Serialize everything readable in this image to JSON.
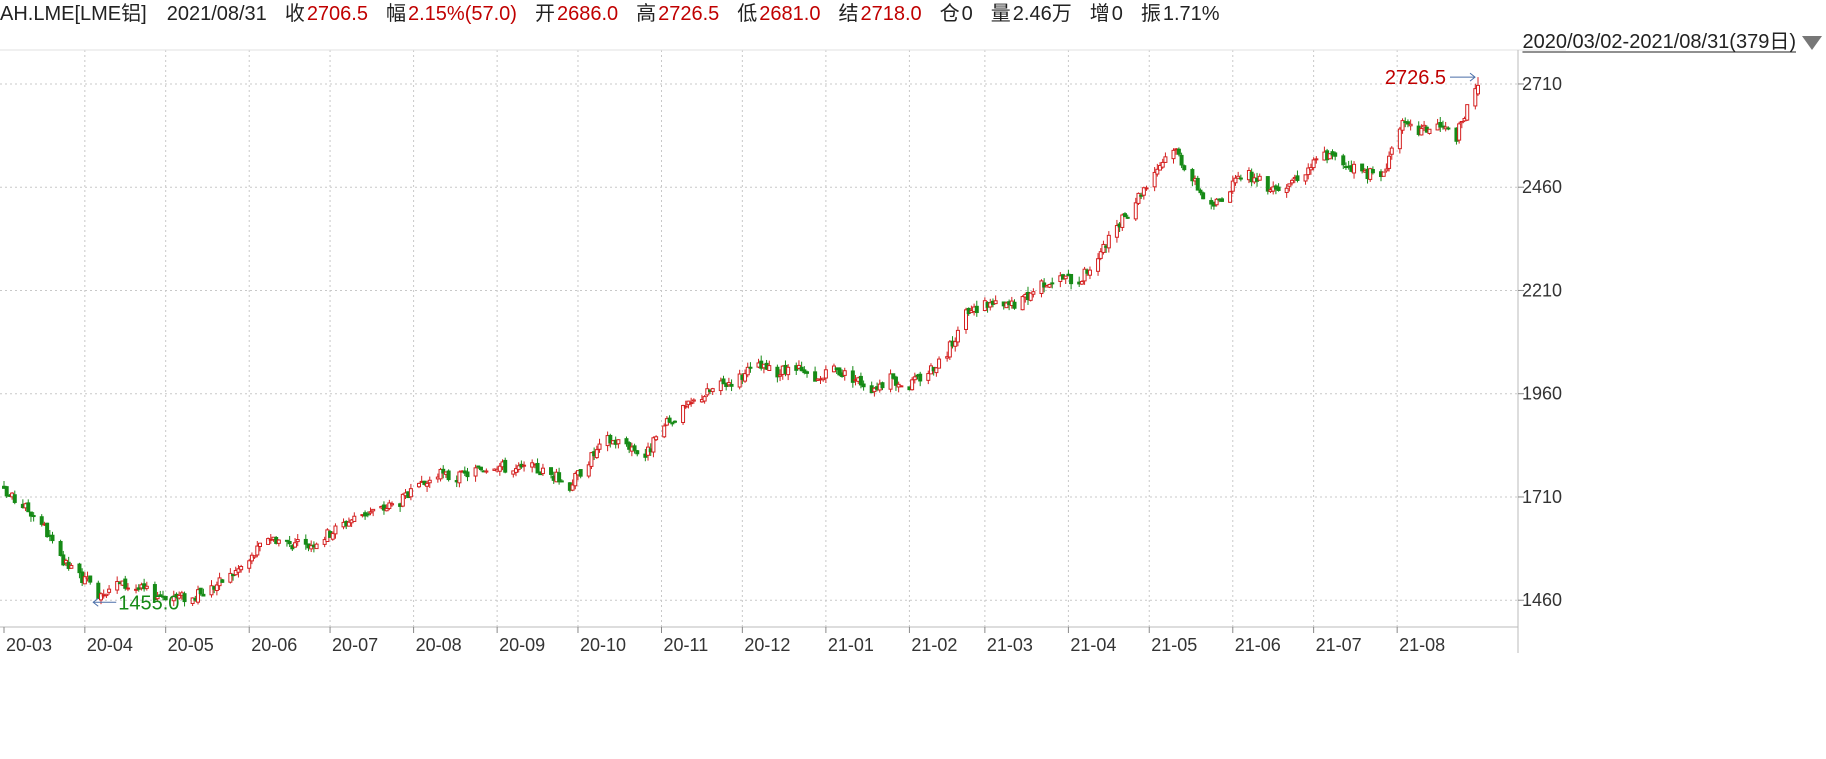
{
  "header": {
    "symbol": "AH.LME[LME铝]",
    "date": "2021/08/31",
    "fields": [
      {
        "label": "收",
        "value": "2706.5",
        "color": "#c00000"
      },
      {
        "label": "幅",
        "value": "2.15%(57.0)",
        "color": "#c00000"
      },
      {
        "label": "开",
        "value": "2686.0",
        "color": "#c00000"
      },
      {
        "label": "高",
        "value": "2726.5",
        "color": "#c00000"
      },
      {
        "label": "低",
        "value": "2681.0",
        "color": "#c00000"
      },
      {
        "label": "结",
        "value": "2718.0",
        "color": "#c00000"
      },
      {
        "label": "仓",
        "value": "0",
        "color": "#222222"
      },
      {
        "label": "量",
        "value": "2.46万",
        "color": "#222222"
      },
      {
        "label": "增",
        "value": "0",
        "color": "#222222"
      },
      {
        "label": "振",
        "value": "1.71%",
        "color": "#222222"
      }
    ]
  },
  "range_selector": {
    "label": "2020/03/02-2021/08/31(379日)",
    "icon": "triangle-down-icon"
  },
  "colors": {
    "up": "#d42020",
    "down": "#168a16",
    "high_label": "#c00000",
    "low_label": "#168a16",
    "grid": "#c8c8c8",
    "text": "#222222",
    "marker_line": "#4a6ea8"
  },
  "chart_data": {
    "type": "candlestick",
    "title": "",
    "xlabel": "",
    "ylabel": "",
    "grid": true,
    "ylim": [
      1400,
      2768
    ],
    "y_ticks": [
      1460,
      1710,
      1960,
      2210,
      2460,
      2710
    ],
    "x_ticks": [
      "20-03",
      "20-04",
      "20-05",
      "20-06",
      "20-07",
      "20-08",
      "20-09",
      "20-10",
      "20-11",
      "20-12",
      "21-01",
      "21-02",
      "21-03",
      "21-04",
      "21-05",
      "21-06",
      "21-07",
      "21-08"
    ],
    "annotations": [
      {
        "label": "2726.5",
        "value": 2726.5,
        "kind": "max"
      },
      {
        "label": "1455.0",
        "value": 1455.0,
        "kind": "min"
      }
    ],
    "waypoints": [
      [
        "2020-03-02",
        1720
      ],
      [
        "2020-03-09",
        1690
      ],
      [
        "2020-03-16",
        1650
      ],
      [
        "2020-03-23",
        1555
      ],
      [
        "2020-03-30",
        1520
      ],
      [
        "2020-04-06",
        1478
      ],
      [
        "2020-04-13",
        1500
      ],
      [
        "2020-04-20",
        1490
      ],
      [
        "2020-04-27",
        1475
      ],
      [
        "2020-05-04",
        1470
      ],
      [
        "2020-05-11",
        1465
      ],
      [
        "2020-05-18",
        1490
      ],
      [
        "2020-05-25",
        1520
      ],
      [
        "2020-06-01",
        1555
      ],
      [
        "2020-06-08",
        1615
      ],
      [
        "2020-06-15",
        1600
      ],
      [
        "2020-06-22",
        1590
      ],
      [
        "2020-06-29",
        1615
      ],
      [
        "2020-07-06",
        1645
      ],
      [
        "2020-07-13",
        1670
      ],
      [
        "2020-07-20",
        1680
      ],
      [
        "2020-07-27",
        1700
      ],
      [
        "2020-08-03",
        1730
      ],
      [
        "2020-08-10",
        1765
      ],
      [
        "2020-08-17",
        1755
      ],
      [
        "2020-08-24",
        1775
      ],
      [
        "2020-08-31",
        1790
      ],
      [
        "2020-09-07",
        1775
      ],
      [
        "2020-09-14",
        1780
      ],
      [
        "2020-09-21",
        1765
      ],
      [
        "2020-09-28",
        1738
      ],
      [
        "2020-10-05",
        1800
      ],
      [
        "2020-10-12",
        1848
      ],
      [
        "2020-10-19",
        1840
      ],
      [
        "2020-10-26",
        1810
      ],
      [
        "2020-11-02",
        1880
      ],
      [
        "2020-11-09",
        1920
      ],
      [
        "2020-11-16",
        1955
      ],
      [
        "2020-11-23",
        1980
      ],
      [
        "2020-11-30",
        2000
      ],
      [
        "2020-12-07",
        2025
      ],
      [
        "2020-12-14",
        2010
      ],
      [
        "2020-12-21",
        2020
      ],
      [
        "2020-12-28",
        1985
      ],
      [
        "2021-01-04",
        2020
      ],
      [
        "2021-01-11",
        2000
      ],
      [
        "2021-01-18",
        1975
      ],
      [
        "2021-01-25",
        1995
      ],
      [
        "2021-02-01",
        1980
      ],
      [
        "2021-02-08",
        2015
      ],
      [
        "2021-02-15",
        2060
      ],
      [
        "2021-02-22",
        2150
      ],
      [
        "2021-03-01",
        2180
      ],
      [
        "2021-03-08",
        2170
      ],
      [
        "2021-03-15",
        2185
      ],
      [
        "2021-03-22",
        2230
      ],
      [
        "2021-03-29",
        2240
      ],
      [
        "2021-04-05",
        2235
      ],
      [
        "2021-04-12",
        2290
      ],
      [
        "2021-04-19",
        2360
      ],
      [
        "2021-04-26",
        2430
      ],
      [
        "2021-05-03",
        2500
      ],
      [
        "2021-05-10",
        2560
      ],
      [
        "2021-05-17",
        2480
      ],
      [
        "2021-05-24",
        2410
      ],
      [
        "2021-05-31",
        2460
      ],
      [
        "2021-06-07",
        2490
      ],
      [
        "2021-06-14",
        2460
      ],
      [
        "2021-06-21",
        2470
      ],
      [
        "2021-06-28",
        2500
      ],
      [
        "2021-07-05",
        2540
      ],
      [
        "2021-07-12",
        2520
      ],
      [
        "2021-07-19",
        2500
      ],
      [
        "2021-07-26",
        2480
      ],
      [
        "2021-08-02",
        2610
      ],
      [
        "2021-08-09",
        2595
      ],
      [
        "2021-08-16",
        2610
      ],
      [
        "2021-08-23",
        2585
      ],
      [
        "2021-08-27",
        2649
      ],
      [
        "2021-08-31",
        2706.5
      ]
    ],
    "last_candle": {
      "date": "2021-08-31",
      "open": 2686.0,
      "high": 2726.5,
      "low": 2681.0,
      "close": 2706.5
    }
  }
}
